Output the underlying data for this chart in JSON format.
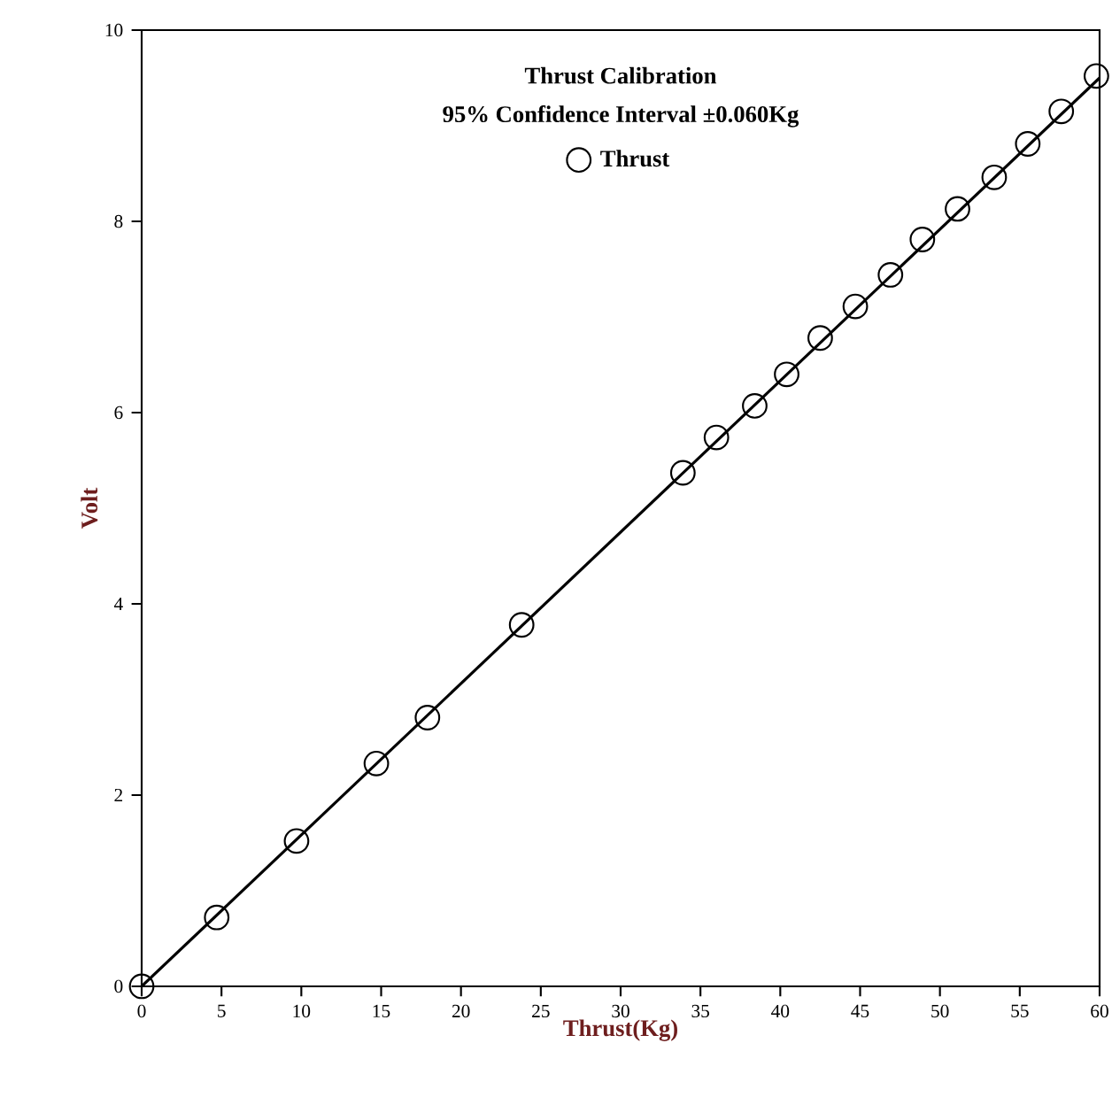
{
  "chart_data": {
    "type": "scatter",
    "title": "Thrust Calibration",
    "subtitle": "95% Confidence Interval ±0.060Kg",
    "xlabel": "Thrust(Kg)",
    "ylabel": "Volt",
    "xlim": [
      0,
      60
    ],
    "ylim": [
      0,
      10
    ],
    "xticks": [
      0,
      5,
      10,
      15,
      20,
      25,
      30,
      35,
      40,
      45,
      50,
      55,
      60
    ],
    "yticks": [
      0,
      2,
      4,
      6,
      8,
      10
    ],
    "legend": "top",
    "marker": "circle",
    "grid": false,
    "series": [
      {
        "name": "Thrust",
        "color": "#000000",
        "x": [
          0,
          4.7,
          9.7,
          14.7,
          17.9,
          23.8,
          33.9,
          36.0,
          38.4,
          40.4,
          42.5,
          44.7,
          46.9,
          48.9,
          51.1,
          53.4,
          55.5,
          57.6,
          59.8
        ],
        "values": [
          0,
          0.72,
          1.52,
          2.33,
          2.81,
          3.78,
          5.37,
          5.74,
          6.07,
          6.4,
          6.78,
          7.11,
          7.44,
          7.81,
          8.13,
          8.46,
          8.81,
          9.15,
          9.52
        ]
      },
      {
        "type": "line",
        "color": "#000000",
        "marker": "none",
        "x": [
          0,
          60
        ],
        "values": [
          0,
          9.5
        ]
      }
    ]
  }
}
